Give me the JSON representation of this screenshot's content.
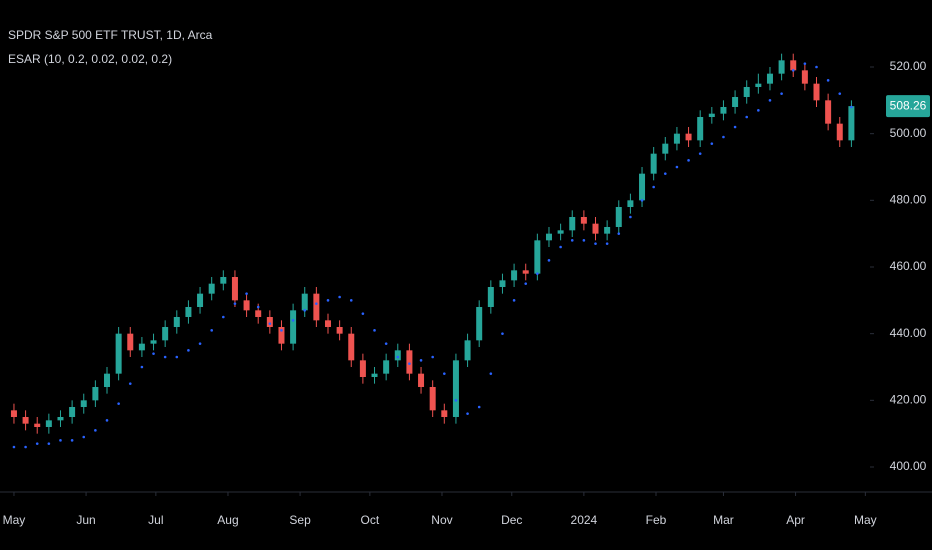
{
  "chart_data": {
    "type": "candlestick",
    "title": "SPDR S&P 500 ETF TRUST, 1D, Arca",
    "indicator": "ESAR (10, 0.2, 0.02, 0.02, 0.2)",
    "x": [
      0,
      5,
      10,
      15,
      20,
      25,
      30,
      35,
      40,
      45,
      50,
      55,
      60,
      65,
      70,
      75,
      80,
      85,
      90,
      95,
      100,
      105,
      110,
      115,
      120,
      125,
      130,
      135,
      140,
      145,
      150,
      155,
      160,
      165,
      170,
      175,
      180,
      185,
      190,
      195,
      200,
      205,
      210,
      215,
      220,
      225,
      230,
      235,
      240,
      245,
      250,
      255,
      260,
      265,
      270,
      275,
      280,
      285,
      290,
      295,
      300,
      305,
      310,
      315,
      320,
      325,
      330,
      335,
      340,
      345,
      350,
      355,
      360
    ],
    "open": [
      417,
      415,
      413,
      412,
      414,
      415,
      418,
      420,
      424,
      428,
      440,
      435,
      437,
      438,
      442,
      445,
      448,
      452,
      455,
      457,
      450,
      447,
      445,
      442,
      437,
      447,
      452,
      444,
      442,
      440,
      432,
      427,
      428,
      432,
      435,
      428,
      424,
      417,
      415,
      432,
      438,
      448,
      454,
      456,
      459,
      458,
      468,
      470,
      471,
      475,
      473,
      470,
      472,
      478,
      480,
      488,
      494,
      497,
      500,
      498,
      505,
      506,
      508,
      511,
      514,
      515,
      518,
      522,
      519,
      515,
      510,
      503,
      498
    ],
    "high": [
      419,
      417,
      415,
      416,
      417,
      420,
      422,
      426,
      430,
      442,
      442,
      439,
      440,
      444,
      447,
      450,
      454,
      457,
      459,
      459,
      452,
      449,
      447,
      444,
      449,
      454,
      454,
      446,
      444,
      442,
      434,
      430,
      434,
      437,
      437,
      430,
      426,
      419,
      434,
      440,
      450,
      456,
      458,
      461,
      461,
      470,
      472,
      473,
      477,
      477,
      475,
      474,
      480,
      482,
      490,
      496,
      499,
      502,
      502,
      507,
      508,
      510,
      513,
      516,
      518,
      520,
      524,
      524,
      521,
      517,
      512,
      505,
      510
    ],
    "low": [
      413,
      411,
      410,
      410,
      412,
      413,
      416,
      418,
      422,
      426,
      433,
      433,
      435,
      436,
      440,
      443,
      446,
      450,
      453,
      448,
      445,
      443,
      440,
      435,
      435,
      445,
      442,
      440,
      438,
      430,
      425,
      425,
      426,
      430,
      426,
      422,
      415,
      413,
      413,
      430,
      436,
      446,
      452,
      454,
      456,
      456,
      466,
      468,
      469,
      471,
      468,
      468,
      470,
      476,
      478,
      486,
      492,
      495,
      496,
      496,
      503,
      504,
      506,
      509,
      512,
      513,
      516,
      517,
      513,
      508,
      501,
      496,
      496
    ],
    "close": [
      415,
      413,
      412,
      414,
      415,
      418,
      420,
      424,
      428,
      440,
      435,
      437,
      438,
      442,
      445,
      448,
      452,
      455,
      457,
      450,
      447,
      445,
      442,
      437,
      447,
      452,
      444,
      442,
      440,
      432,
      427,
      428,
      432,
      435,
      428,
      424,
      417,
      415,
      432,
      438,
      448,
      454,
      456,
      459,
      458,
      468,
      470,
      471,
      475,
      473,
      470,
      472,
      478,
      480,
      488,
      494,
      497,
      500,
      498,
      505,
      506,
      508,
      511,
      514,
      515,
      518,
      522,
      519,
      515,
      510,
      503,
      498,
      508.26
    ],
    "sar": [
      406,
      406,
      407,
      407,
      408,
      408,
      409,
      411,
      414,
      419,
      425,
      430,
      434,
      433,
      433,
      435,
      437,
      441,
      445,
      449,
      452,
      448,
      443,
      441,
      444,
      447,
      449,
      450,
      451,
      450,
      446,
      441,
      437,
      433,
      431,
      432,
      433,
      428,
      420,
      416,
      418,
      428,
      440,
      450,
      455,
      458,
      462,
      466,
      468,
      468,
      467,
      467,
      470,
      475,
      480,
      484,
      488,
      490,
      492,
      494,
      497,
      499,
      502,
      505,
      507,
      510,
      512,
      519,
      521,
      520,
      516,
      512,
      508
    ],
    "up_color": "#26a69a",
    "down_color": "#ef5350",
    "sar_color": "#2962ff",
    "xlim": [
      -6,
      368
    ],
    "ylim": [
      392.5,
      540.1
    ],
    "xticks": [
      {
        "value": 0,
        "label": "May"
      },
      {
        "value": 31,
        "label": "Jun"
      },
      {
        "value": 61,
        "label": "Jul"
      },
      {
        "value": 92,
        "label": "Aug"
      },
      {
        "value": 123,
        "label": "Sep"
      },
      {
        "value": 153,
        "label": "Oct"
      },
      {
        "value": 184,
        "label": "Nov"
      },
      {
        "value": 214,
        "label": "Dec"
      },
      {
        "value": 245,
        "label": "2024"
      },
      {
        "value": 276,
        "label": "Feb"
      },
      {
        "value": 305,
        "label": "Mar"
      },
      {
        "value": 336,
        "label": "Apr"
      },
      {
        "value": 366,
        "label": "May"
      }
    ],
    "yticks": [
      {
        "value": 400,
        "label": "400.00"
      },
      {
        "value": 420,
        "label": "420.00"
      },
      {
        "value": 440,
        "label": "440.00"
      },
      {
        "value": 460,
        "label": "460.00"
      },
      {
        "value": 480,
        "label": "480.00"
      },
      {
        "value": 500,
        "label": "500.00"
      },
      {
        "value": 520,
        "label": "520.00"
      }
    ]
  }
}
